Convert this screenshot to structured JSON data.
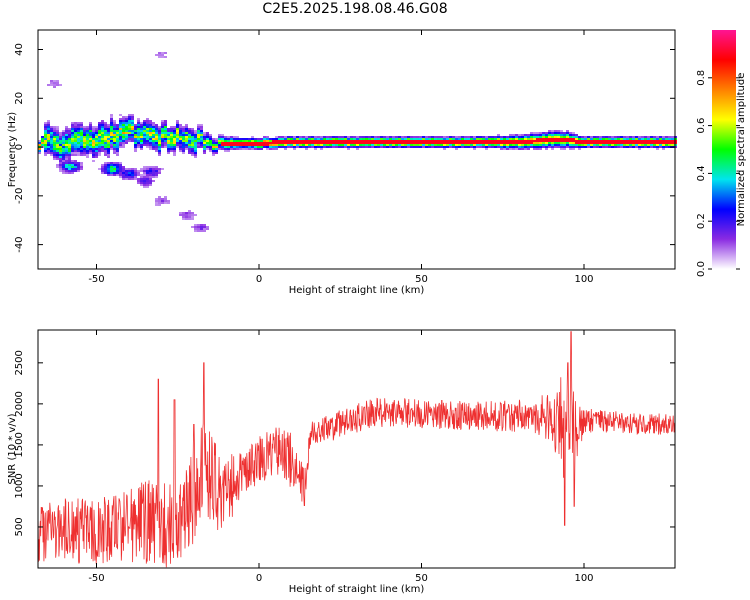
{
  "title": "C2E5.2025.198.08.46.G08",
  "chart_data": [
    {
      "type": "heatmap",
      "xlabel": "Height of straight line (km)",
      "ylabel": "Frequency (Hz)",
      "xlim": [
        -68,
        128
      ],
      "ylim": [
        -50,
        48
      ],
      "xticks": [
        -50,
        0,
        50,
        100
      ],
      "yticks": [
        -40,
        -20,
        0,
        20,
        40
      ],
      "colorbar": {
        "label": "Normalized spectral amplitude",
        "range": [
          0,
          1
        ],
        "ticks": [
          "0.0",
          "0.2",
          "0.4",
          "0.6",
          "0.8"
        ],
        "tick_values": [
          0,
          0.2,
          0.4,
          0.6,
          0.8
        ],
        "colors": [
          "#ffffff",
          "#8a2be2",
          "#0000ff",
          "#00e5ee",
          "#00ff00",
          "#ffff00",
          "#ff8000",
          "#ff0000",
          "#ff1493"
        ]
      },
      "ridge": [
        {
          "x": -66,
          "f": 2,
          "amp": 0.55,
          "spread": 6
        },
        {
          "x": -60,
          "f": 1,
          "amp": 0.5,
          "spread": 6
        },
        {
          "x": -55,
          "f": 2,
          "amp": 0.55,
          "spread": 6
        },
        {
          "x": -50,
          "f": 3,
          "amp": 0.55,
          "spread": 6
        },
        {
          "x": -45,
          "f": 4,
          "amp": 0.6,
          "spread": 6
        },
        {
          "x": -40,
          "f": 6,
          "amp": 0.6,
          "spread": 5
        },
        {
          "x": -35,
          "f": 5,
          "amp": 0.55,
          "spread": 5
        },
        {
          "x": -30,
          "f": 4,
          "amp": 0.6,
          "spread": 5
        },
        {
          "x": -25,
          "f": 4,
          "amp": 0.55,
          "spread": 5
        },
        {
          "x": -20,
          "f": 3,
          "amp": 0.5,
          "spread": 5
        },
        {
          "x": -15,
          "f": 2,
          "amp": 0.55,
          "spread": 3
        },
        {
          "x": -10,
          "f": 1.5,
          "amp": 0.65,
          "spread": 2.5
        },
        {
          "x": -5,
          "f": 1.5,
          "amp": 0.7,
          "spread": 2
        },
        {
          "x": 0,
          "f": 1.5,
          "amp": 0.85,
          "spread": 2
        },
        {
          "x": 10,
          "f": 2,
          "amp": 0.85,
          "spread": 2
        },
        {
          "x": 20,
          "f": 2,
          "amp": 0.85,
          "spread": 2
        },
        {
          "x": 30,
          "f": 2,
          "amp": 0.85,
          "spread": 2
        },
        {
          "x": 40,
          "f": 2,
          "amp": 0.85,
          "spread": 2
        },
        {
          "x": 50,
          "f": 2,
          "amp": 0.85,
          "spread": 2
        },
        {
          "x": 60,
          "f": 2,
          "amp": 0.85,
          "spread": 2
        },
        {
          "x": 70,
          "f": 2,
          "amp": 0.85,
          "spread": 2
        },
        {
          "x": 80,
          "f": 2,
          "amp": 0.8,
          "spread": 2.5
        },
        {
          "x": 90,
          "f": 3,
          "amp": 0.75,
          "spread": 3
        },
        {
          "x": 95,
          "f": 3,
          "amp": 0.7,
          "spread": 3
        },
        {
          "x": 100,
          "f": 2,
          "amp": 0.85,
          "spread": 2
        },
        {
          "x": 110,
          "f": 2,
          "amp": 0.85,
          "spread": 2
        },
        {
          "x": 120,
          "f": 2,
          "amp": 0.85,
          "spread": 2
        },
        {
          "x": 128,
          "f": 2,
          "amp": 0.85,
          "spread": 2
        }
      ],
      "scatter_blobs": [
        {
          "x": -63,
          "f": 26,
          "amp": 0.12
        },
        {
          "x": -30,
          "f": 38,
          "amp": 0.1
        },
        {
          "x": -45,
          "f": -9,
          "amp": 0.5
        },
        {
          "x": -58,
          "f": -8,
          "amp": 0.45
        },
        {
          "x": -35,
          "f": -14,
          "amp": 0.2
        },
        {
          "x": -30,
          "f": -22,
          "amp": 0.15
        },
        {
          "x": -33,
          "f": -10,
          "amp": 0.25
        },
        {
          "x": -22,
          "f": -28,
          "amp": 0.15
        },
        {
          "x": -18,
          "f": -33,
          "amp": 0.15
        },
        {
          "x": -40,
          "f": -11,
          "amp": 0.3
        }
      ]
    },
    {
      "type": "line",
      "xlabel": "Height of straight line (km)",
      "ylabel": "SNR (10 * v/v)",
      "xlim": [
        -68,
        128
      ],
      "ylim": [
        0,
        2900
      ],
      "xticks": [
        -50,
        0,
        50,
        100
      ],
      "yticks": [
        500,
        1000,
        1500,
        2000,
        2500
      ],
      "color": "#ee3030",
      "envelope": [
        {
          "x": -68,
          "mean": 400,
          "amp": 350
        },
        {
          "x": -60,
          "mean": 450,
          "amp": 400
        },
        {
          "x": -50,
          "mean": 450,
          "amp": 400
        },
        {
          "x": -40,
          "mean": 500,
          "amp": 450
        },
        {
          "x": -32,
          "mean": 550,
          "amp": 600
        },
        {
          "x": -25,
          "mean": 500,
          "amp": 450
        },
        {
          "x": -20,
          "mean": 900,
          "amp": 600
        },
        {
          "x": -17,
          "mean": 1200,
          "amp": 700
        },
        {
          "x": -12,
          "mean": 900,
          "amp": 500
        },
        {
          "x": -5,
          "mean": 1100,
          "amp": 300
        },
        {
          "x": 0,
          "mean": 1300,
          "amp": 300
        },
        {
          "x": 5,
          "mean": 1450,
          "amp": 300
        },
        {
          "x": 10,
          "mean": 1300,
          "amp": 350
        },
        {
          "x": 14,
          "mean": 1000,
          "amp": 250
        },
        {
          "x": 16,
          "mean": 1650,
          "amp": 150
        },
        {
          "x": 25,
          "mean": 1750,
          "amp": 180
        },
        {
          "x": 35,
          "mean": 1900,
          "amp": 180
        },
        {
          "x": 50,
          "mean": 1880,
          "amp": 180
        },
        {
          "x": 65,
          "mean": 1850,
          "amp": 180
        },
        {
          "x": 80,
          "mean": 1850,
          "amp": 200
        },
        {
          "x": 90,
          "mean": 1850,
          "amp": 300
        },
        {
          "x": 94,
          "mean": 1700,
          "amp": 700
        },
        {
          "x": 97,
          "mean": 1700,
          "amp": 500
        },
        {
          "x": 100,
          "mean": 1800,
          "amp": 150
        },
        {
          "x": 110,
          "mean": 1780,
          "amp": 130
        },
        {
          "x": 120,
          "mean": 1750,
          "amp": 130
        },
        {
          "x": 128,
          "mean": 1760,
          "amp": 130
        }
      ],
      "spikes": [
        {
          "x": -31,
          "y": 2300
        },
        {
          "x": -17,
          "y": 2500
        },
        {
          "x": -20,
          "y": 1750
        },
        {
          "x": 94,
          "y": 520
        },
        {
          "x": 95,
          "y": 2500
        },
        {
          "x": 96,
          "y": 2880
        },
        {
          "x": 97,
          "y": 750
        },
        {
          "x": 14,
          "y": 760
        },
        {
          "x": -26,
          "y": 2050
        }
      ]
    }
  ]
}
